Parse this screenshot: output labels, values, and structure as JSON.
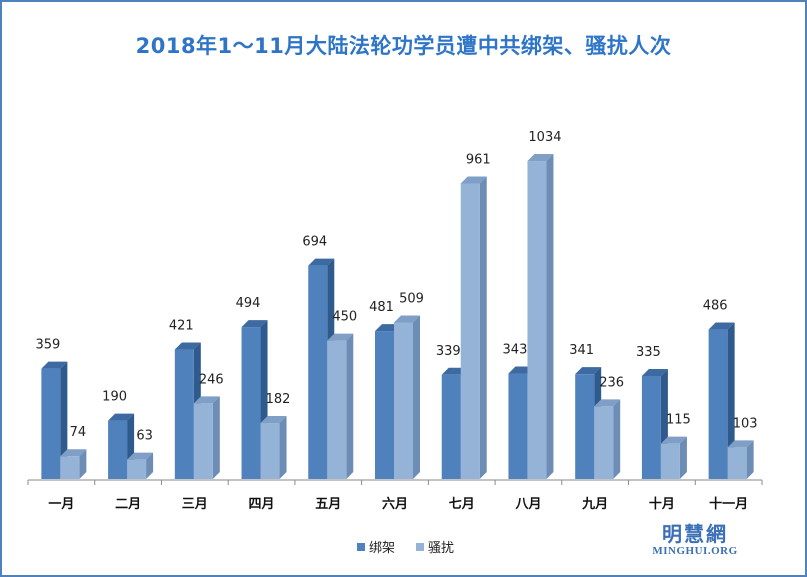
{
  "chart_data": {
    "type": "bar",
    "title": "2018年1～11月大陆法轮功学员遭中共绑架、骚扰人次",
    "categories": [
      "一月",
      "二月",
      "三月",
      "四月",
      "五月",
      "六月",
      "七月",
      "八月",
      "九月",
      "十月",
      "十一月"
    ],
    "series": [
      {
        "name": "绑架",
        "values": [
          359,
          190,
          421,
          494,
          694,
          481,
          339,
          343,
          341,
          335,
          486
        ]
      },
      {
        "name": "骚扰",
        "values": [
          74,
          63,
          246,
          182,
          450,
          509,
          961,
          1034,
          236,
          115,
          103
        ]
      }
    ],
    "xlabel": "",
    "ylabel": "",
    "grid": false,
    "legend": "bottom",
    "colors": {
      "series1": "#4f81bd",
      "series2": "#95b3d7"
    }
  },
  "logo": {
    "cn": "明慧網",
    "en": "MINGHUI.ORG"
  }
}
